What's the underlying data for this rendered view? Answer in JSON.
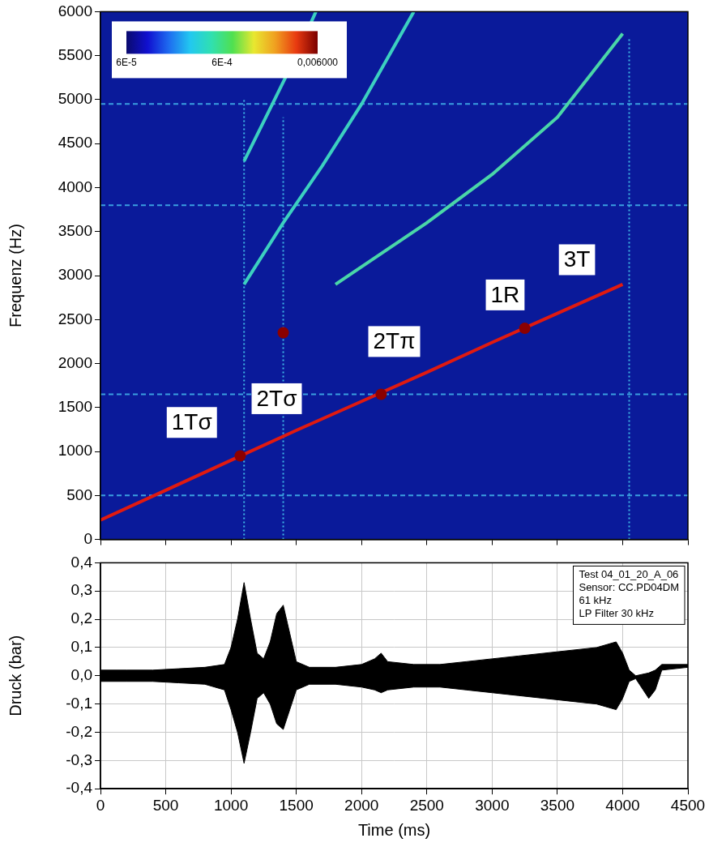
{
  "chart_data": [
    {
      "type": "line",
      "ylabel": "Frequenz (Hz)",
      "xlim": [
        0,
        4500
      ],
      "xticks": [
        0,
        500,
        1000,
        1500,
        2000,
        2500,
        3000,
        3500,
        4000,
        4500
      ],
      "ylim": [
        0,
        6000
      ],
      "yticks": [
        0,
        500,
        1000,
        1500,
        2000,
        2500,
        3000,
        3500,
        4000,
        4500,
        5000,
        5500,
        6000
      ],
      "tick_labels": "y",
      "grid": false,
      "colorbar": {
        "range": [
          6e-05,
          0.006
        ],
        "ticks": [
          {
            "value": 6e-05,
            "label": "6E-5"
          },
          {
            "value": 0.0006,
            "label": "6E-4"
          },
          {
            "value": 0.006,
            "label": "0,006000"
          }
        ]
      },
      "annotations": [
        {
          "text": "1Tσ",
          "x": 700,
          "y": 1330
        },
        {
          "text": "2Tσ",
          "x": 1350,
          "y": 1600
        },
        {
          "text": "2Tπ",
          "x": 2250,
          "y": 2250
        },
        {
          "text": "1R",
          "x": 3100,
          "y": 2780
        },
        {
          "text": "3T",
          "x": 3650,
          "y": 3180
        }
      ],
      "series": [
        {
          "x": [
            0,
            4500
          ],
          "values": [
            500,
            500
          ],
          "color": "#3a9fe0",
          "line_style": "dashed"
        },
        {
          "x": [
            0,
            4500
          ],
          "values": [
            1650,
            1650
          ],
          "color": "#3a9fe0",
          "line_style": "dashed"
        },
        {
          "x": [
            0,
            4500
          ],
          "values": [
            3800,
            3800
          ],
          "color": "#3a9fe0",
          "line_style": "dashed"
        },
        {
          "x": [
            0,
            4500
          ],
          "values": [
            4950,
            4950
          ],
          "color": "#3a9fe0",
          "line_style": "dashed"
        },
        {
          "x": [
            1100,
            1100
          ],
          "values": [
            0,
            5000
          ],
          "color": "#3fb6e6",
          "line_style": "dotted"
        },
        {
          "x": [
            1400,
            1400
          ],
          "values": [
            0,
            4800
          ],
          "color": "#3fb6e6",
          "line_style": "dotted"
        },
        {
          "x": [
            4050,
            4050
          ],
          "values": [
            0,
            5700
          ],
          "color": "#3fb6e6",
          "line_style": "dotted"
        },
        {
          "x": [
            1100,
            1300,
            1500,
            1650
          ],
          "values": [
            4300,
            4900,
            5500,
            6000
          ],
          "color": "#3cd0c0",
          "line_style": "solid"
        },
        {
          "x": [
            1100,
            1400,
            1700,
            2000,
            2400
          ],
          "values": [
            2900,
            3600,
            4250,
            4950,
            6000
          ],
          "color": "#3cd0c0",
          "line_style": "solid"
        },
        {
          "x": [
            1800,
            2500,
            3000,
            3500,
            4000
          ],
          "values": [
            2900,
            3600,
            4150,
            4800,
            5750
          ],
          "color": "#4ad6a8",
          "line_style": "solid"
        },
        {
          "x": [
            0,
            500,
            1000,
            1500,
            2000,
            2500,
            3000,
            3500,
            4000
          ],
          "values": [
            220,
            560,
            900,
            1240,
            1570,
            1900,
            2240,
            2570,
            2900
          ],
          "color": "#e01a10",
          "line_style": "solid"
        },
        {
          "type": "scatter",
          "marker": "circle",
          "x": [
            1070,
            1400,
            2150,
            3250
          ],
          "values": [
            950,
            2350,
            1650,
            2400
          ],
          "color": "#8b0000"
        }
      ]
    },
    {
      "type": "line",
      "xlabel": "Time (ms)",
      "ylabel": "Druck (bar)",
      "xlim": [
        0,
        4500
      ],
      "xticks": [
        0,
        500,
        1000,
        1500,
        2000,
        2500,
        3000,
        3500,
        4000,
        4500
      ],
      "ylim": [
        -0.4,
        0.4
      ],
      "yticks": [
        {
          "value": -0.4,
          "label": "-0,4"
        },
        {
          "value": -0.3,
          "label": "-0,3"
        },
        {
          "value": -0.2,
          "label": "-0,2"
        },
        {
          "value": -0.1,
          "label": "-0,1"
        },
        {
          "value": 0,
          "label": "0,0"
        },
        {
          "value": 0.1,
          "label": "0,1"
        },
        {
          "value": 0.2,
          "label": "0,2"
        },
        {
          "value": 0.3,
          "label": "0,3"
        },
        {
          "value": 0.4,
          "label": "0,4"
        }
      ],
      "grid": true,
      "info_box": [
        "Test 04_01_20_A_06",
        "Sensor: CC.PD04DM",
        "61 kHz",
        "LP Filter 30 kHz"
      ],
      "x": [
        0,
        200,
        400,
        600,
        800,
        950,
        1000,
        1050,
        1100,
        1150,
        1200,
        1250,
        1300,
        1350,
        1400,
        1450,
        1500,
        1600,
        1800,
        2000,
        2100,
        2150,
        2200,
        2400,
        2600,
        2800,
        3000,
        3200,
        3400,
        3600,
        3800,
        3950,
        4000,
        4050,
        4100,
        4200,
        4250,
        4300,
        4500
      ],
      "series": [
        {
          "values": [
            0.02,
            0.02,
            0.02,
            0.025,
            0.03,
            0.04,
            0.1,
            0.2,
            0.33,
            0.2,
            0.08,
            0.06,
            0.12,
            0.22,
            0.25,
            0.15,
            0.05,
            0.03,
            0.03,
            0.04,
            0.06,
            0.08,
            0.05,
            0.04,
            0.04,
            0.05,
            0.06,
            0.07,
            0.08,
            0.09,
            0.1,
            0.12,
            0.08,
            0.02,
            0.0,
            0.01,
            0.02,
            0.04,
            0.04
          ],
          "color": "#000000"
        },
        {
          "values": [
            -0.02,
            -0.02,
            -0.02,
            -0.025,
            -0.03,
            -0.05,
            -0.12,
            -0.2,
            -0.31,
            -0.2,
            -0.08,
            -0.06,
            -0.1,
            -0.17,
            -0.19,
            -0.12,
            -0.05,
            -0.03,
            -0.03,
            -0.04,
            -0.05,
            -0.06,
            -0.05,
            -0.04,
            -0.04,
            -0.05,
            -0.06,
            -0.07,
            -0.08,
            -0.09,
            -0.1,
            -0.12,
            -0.08,
            -0.02,
            -0.01,
            -0.08,
            -0.05,
            0.02,
            0.03
          ],
          "color": "#000000"
        }
      ]
    }
  ]
}
